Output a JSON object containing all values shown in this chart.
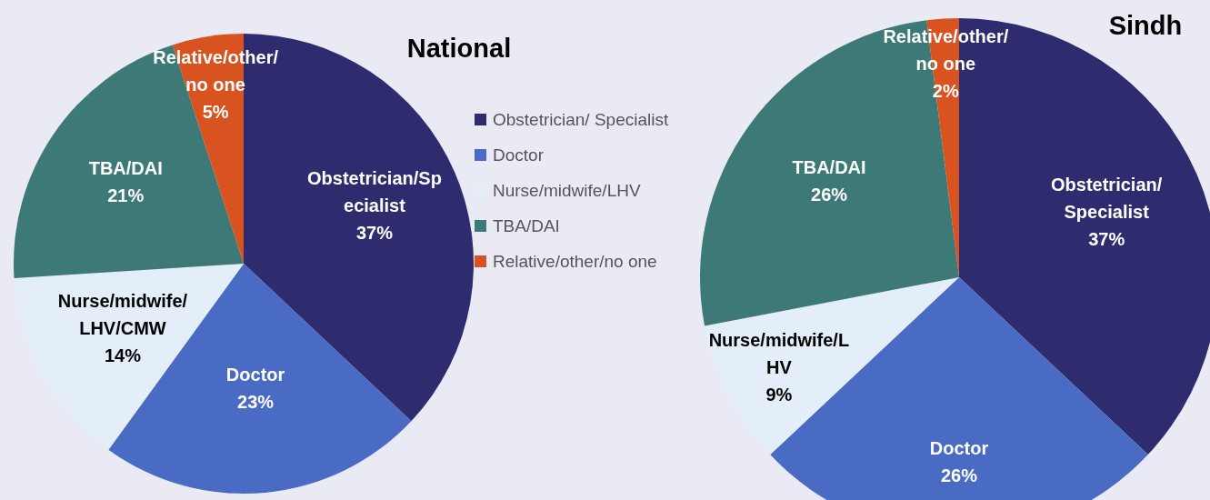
{
  "chart_data": [
    {
      "type": "pie",
      "title": "National",
      "categories": [
        "Obstetrician/Specialist",
        "Doctor",
        "Nurse/midwife/ LHV/CMW",
        "TBA/DAI",
        "Relative/other/ no one"
      ],
      "values": [
        37,
        23,
        14,
        21,
        5
      ],
      "value_labels": [
        "37%",
        "23%",
        "14%",
        "21%",
        "5%"
      ],
      "colors": [
        "#2e2b6e",
        "#4a6bc4",
        "#e4eef8",
        "#3d7977",
        "#d8531f"
      ],
      "data_labels": true,
      "legend": false
    },
    {
      "type": "pie",
      "title": "Sindh",
      "categories": [
        "Obstetrician/ Specialist",
        "Doctor",
        "Nurse/midwife/LHV",
        "TBA/DAI",
        "Relative/other/no one"
      ],
      "values": [
        37,
        26,
        9,
        26,
        2
      ],
      "value_labels": [
        "37%",
        "26%",
        "9%",
        "26%",
        "2%"
      ],
      "colors": [
        "#2e2b6e",
        "#4a6bc4",
        "#e4eef8",
        "#3d7977",
        "#d8531f"
      ],
      "data_labels": true,
      "legend": "left"
    }
  ]
}
